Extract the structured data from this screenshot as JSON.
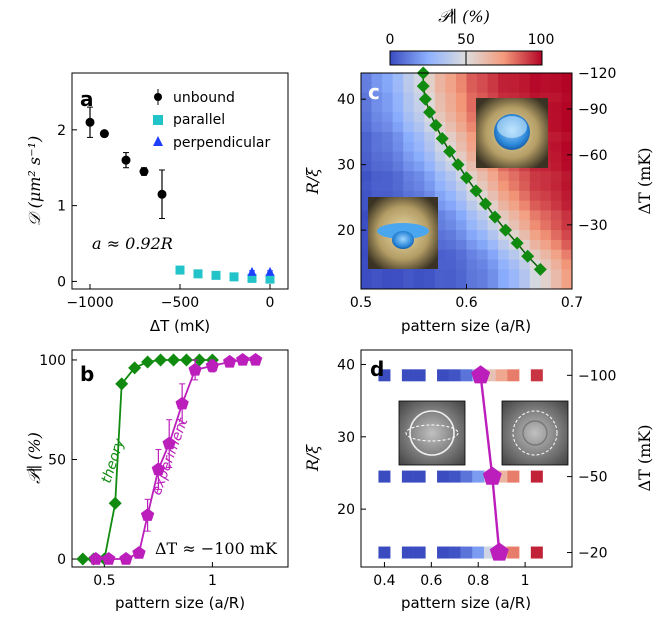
{
  "colorbar": {
    "label": "𝒫∥ (%)",
    "ticks": [
      "0",
      "50",
      "100"
    ],
    "colors": {
      "low": "#3a4cc0",
      "mid": "#dddddd",
      "high": "#b40426"
    }
  },
  "chart_data": [
    {
      "panel": "a",
      "type": "scatter",
      "xlabel": "ΔT (mK)",
      "ylabel": "𝒟 (μm² s⁻¹)",
      "xlim": [
        -1100,
        100
      ],
      "ylim": [
        -0.1,
        2.75
      ],
      "xticks": [
        "−1000",
        "−500",
        "0"
      ],
      "yticks": [
        "0",
        "1",
        "2"
      ],
      "annotation": "a ≈ 0.92R",
      "legend_position": "top-right",
      "series": [
        {
          "name": "unbound",
          "color": "#000000",
          "marker": "circle",
          "x": [
            -1000,
            -920,
            -800,
            -700,
            -600
          ],
          "y": [
            2.1,
            1.95,
            1.6,
            1.45,
            1.15
          ],
          "err": [
            0.2,
            0.03,
            0.1,
            0.05,
            0.32
          ]
        },
        {
          "name": "parallel",
          "color": "#22c3c9",
          "marker": "square",
          "x": [
            -500,
            -400,
            -300,
            -200,
            -100,
            0
          ],
          "y": [
            0.15,
            0.1,
            0.08,
            0.06,
            0.04,
            0.03
          ],
          "err": [
            0.02,
            0.02,
            0.02,
            0.02,
            0.02,
            0.02
          ]
        },
        {
          "name": "perpendicular",
          "color": "#1f3fff",
          "marker": "triangle",
          "x": [
            -100,
            0
          ],
          "y": [
            0.12,
            0.12
          ],
          "err": [
            0.02,
            0.02
          ]
        }
      ]
    },
    {
      "panel": "b",
      "type": "line",
      "xlabel": "pattern size (a/R)",
      "ylabel": "𝒫∥ (%)",
      "xlim": [
        0.35,
        1.35
      ],
      "ylim": [
        -4,
        105
      ],
      "xticks": [
        0.5,
        1
      ],
      "yticks": [
        0,
        50,
        100
      ],
      "annotation": "ΔT ≈ −100 mK",
      "series": [
        {
          "name": "theory",
          "color": "#108b10",
          "marker": "diamond",
          "x": [
            0.4,
            0.45,
            0.5,
            0.55,
            0.58,
            0.64,
            0.7,
            0.76,
            0.82,
            0.88,
            0.94,
            1.0
          ],
          "y": [
            0,
            0,
            0,
            28,
            88,
            96,
            99,
            100,
            100,
            100,
            100,
            100
          ]
        },
        {
          "name": "experiment",
          "color": "#bb1ebb",
          "marker": "pentagon",
          "x": [
            0.46,
            0.52,
            0.6,
            0.66,
            0.7,
            0.75,
            0.8,
            0.86,
            0.92,
            1.0,
            1.08,
            1.14,
            1.2
          ],
          "y": [
            0,
            0,
            0,
            3,
            22,
            45,
            58,
            78,
            95,
            97,
            99,
            100,
            100
          ],
          "err": [
            0,
            0,
            0,
            2,
            8,
            10,
            12,
            10,
            5,
            3,
            2,
            1,
            1
          ]
        }
      ]
    },
    {
      "panel": "c",
      "type": "heatmap",
      "xlabel": "pattern size (a/R)",
      "ylabel": "R/ξ",
      "ylabel_right": "ΔT (mK)",
      "xlim": [
        0.5,
        0.7
      ],
      "ylim": [
        11,
        44
      ],
      "xticks": [
        "0.5",
        "0.6",
        "0.7"
      ],
      "yticks": [
        20,
        30,
        40
      ],
      "yticks_right": [
        "−120",
        "−90",
        "−60",
        "−30"
      ],
      "yticks_right_pos": [
        44.0,
        38.5,
        31.5,
        20.8
      ],
      "transition_line": {
        "color": "#108b10",
        "x": [
          0.559,
          0.559,
          0.561,
          0.565,
          0.571,
          0.577,
          0.584,
          0.592,
          0.6,
          0.609,
          0.618,
          0.627,
          0.637,
          0.648,
          0.658,
          0.67
        ],
        "y": [
          44,
          42,
          40,
          38,
          36,
          34,
          32,
          30,
          28,
          26,
          24,
          22,
          20,
          18,
          16,
          14
        ]
      }
    },
    {
      "panel": "d",
      "type": "heatmap",
      "xlabel": "pattern size (a/R)",
      "ylabel": "R/ξ",
      "ylabel_right": "ΔT (mK)",
      "xlim": [
        0.3,
        1.2
      ],
      "ylim": [
        12,
        42
      ],
      "xticks": [
        "0.4",
        "0.6",
        "0.8",
        "1"
      ],
      "yticks": [
        20,
        30,
        40
      ],
      "yticks_right": [
        "−100",
        "−50",
        "−20"
      ],
      "rows": [
        {
          "y": 38.5,
          "cells": [
            [
              0.4,
              0.0
            ],
            [
              0.5,
              0.0
            ],
            [
              0.55,
              0.0
            ],
            [
              0.65,
              0.0
            ],
            [
              0.7,
              0.02
            ],
            [
              0.75,
              0.1
            ],
            [
              0.8,
              0.3
            ],
            [
              0.85,
              0.6
            ],
            [
              0.9,
              0.7
            ],
            [
              0.95,
              0.8
            ],
            [
              1.05,
              0.92
            ]
          ]
        },
        {
          "y": 24.5,
          "cells": [
            [
              0.4,
              0.0
            ],
            [
              0.5,
              0.0
            ],
            [
              0.55,
              0.0
            ],
            [
              0.65,
              0.0
            ],
            [
              0.7,
              0.02
            ],
            [
              0.75,
              0.1
            ],
            [
              0.8,
              0.2
            ],
            [
              0.85,
              0.4
            ],
            [
              0.9,
              0.65
            ],
            [
              0.95,
              0.8
            ],
            [
              1.05,
              0.95
            ]
          ]
        },
        {
          "y": 14,
          "cells": [
            [
              0.4,
              0.0
            ],
            [
              0.5,
              0.0
            ],
            [
              0.55,
              0.0
            ],
            [
              0.65,
              0.0
            ],
            [
              0.7,
              0.02
            ],
            [
              0.75,
              0.1
            ],
            [
              0.8,
              0.2
            ],
            [
              0.85,
              0.45
            ],
            [
              0.9,
              0.65
            ],
            [
              0.95,
              0.8
            ],
            [
              1.05,
              0.95
            ]
          ]
        }
      ],
      "experiment_line": {
        "color": "#bb1ebb",
        "x": [
          0.81,
          0.86,
          0.89
        ],
        "y": [
          38.5,
          24.5,
          14
        ]
      }
    }
  ]
}
